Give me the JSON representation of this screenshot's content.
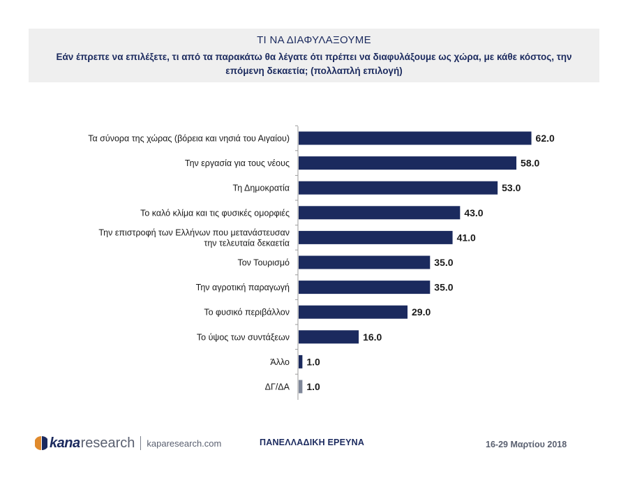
{
  "header": {
    "title": "ΤΙ  ΝΑ ΔΙΑΦΥΛΑΞΟΥΜΕ",
    "subtitle": "Εάν έπρεπε να επιλέξετε, τι από τα παρακάτω θα λέγατε ότι πρέπει να διαφυλάξουμε ως χώρα, με κάθε κόστος, την επόμενη δεκαετία; (πολλαπλή επιλογή)"
  },
  "chart_data": {
    "type": "bar",
    "orientation": "horizontal",
    "categories": [
      [
        "Τα σύνορα της χώρας (βόρεια και νησιά του Αιγαίου)"
      ],
      [
        "Την εργασία για τους νέους"
      ],
      [
        "Τη Δημοκρατία"
      ],
      [
        "Το καλό κλίμα και τις φυσικές ομορφιές"
      ],
      [
        "Την επιστροφή των Ελλήνων που μετανάστευσαν",
        "την τελευταία δεκαετία"
      ],
      [
        "Τον Τουρισμό"
      ],
      [
        "Την αγροτική παραγωγή"
      ],
      [
        "Το φυσικό περιβάλλον"
      ],
      [
        "Το ύψος των συντάξεων"
      ],
      [
        "Άλλο"
      ],
      [
        "ΔΓ/ΔΑ"
      ]
    ],
    "values": [
      62.0,
      58.0,
      53.0,
      43.0,
      41.0,
      35.0,
      35.0,
      29.0,
      16.0,
      1.0,
      1.0
    ],
    "value_labels": [
      "62.0",
      "58.0",
      "53.0",
      "43.0",
      "41.0",
      "35.0",
      "35.0",
      "29.0",
      "16.0",
      "1.0",
      "1.0"
    ],
    "bar_colors": [
      "#1b2a5e",
      "#1b2a5e",
      "#1b2a5e",
      "#1b2a5e",
      "#1b2a5e",
      "#1b2a5e",
      "#1b2a5e",
      "#1b2a5e",
      "#1b2a5e",
      "#1b2a5e",
      "#7f8799"
    ],
    "xlim": [
      0,
      100
    ],
    "grid": false,
    "legend": "none"
  },
  "footer": {
    "logo_kana": "kana",
    "logo_research": "research",
    "logo_url": "kaparesearch.com",
    "survey": "ΠΑΝΕΛΛΑΔΙΚΗ ΕΡΕΥΝΑ",
    "date": "16-29 Μαρτίου 2018"
  }
}
